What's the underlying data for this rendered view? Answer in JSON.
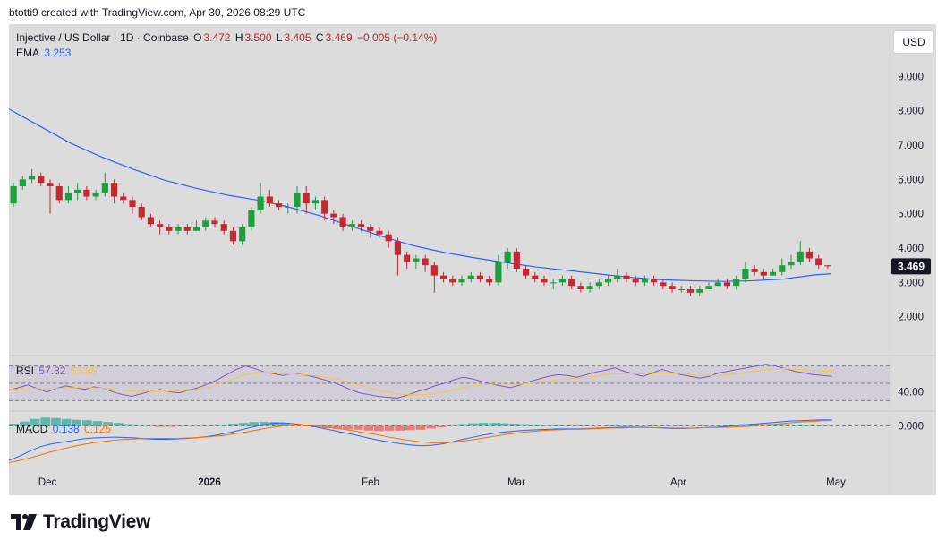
{
  "header": {
    "caption": "btotti9 created with TradingView.com, Apr 30, 2026 08:29 UTC"
  },
  "legend": {
    "symbol": "Injective / US Dollar · 1D · Coinbase",
    "o_label": "O",
    "o": "3.472",
    "h_label": "H",
    "h": "3.500",
    "l_label": "L",
    "l": "3.405",
    "c_label": "C",
    "c": "3.469",
    "change": "−0.005 (−0.14%)",
    "ema_label": "EMA",
    "ema_value": "3.253"
  },
  "currency_button": "USD",
  "rsi_legend": {
    "label": "RSI",
    "value": "57.82",
    "ma_value": "63.89"
  },
  "macd_legend": {
    "label": "MACD",
    "value": "0.138",
    "signal": "0.125"
  },
  "footer": {
    "brand": "TradingView"
  },
  "colors": {
    "up": "#26a69a",
    "down": "#ef5350",
    "ema": "#2962ff",
    "rsi": "#7e57c2",
    "rsi_ma": "#f7c548",
    "macd": "#2962ff",
    "signal": "#ff6d00"
  },
  "chart_data": [
    {
      "type": "candlestick",
      "title": "Injective / US Dollar · 1D · Coinbase",
      "y_axis": {
        "ticks": [
          "2.000",
          "3.000",
          "4.000",
          "5.000",
          "6.000",
          "7.000",
          "8.000",
          "9.000"
        ],
        "range": [
          1.0,
          10.0
        ]
      },
      "x_axis": {
        "ticks": [
          "Dec",
          "2026",
          "Feb",
          "Mar",
          "Apr",
          "May"
        ]
      },
      "last_price_label": "3.469",
      "ema_series": [
        [
          0,
          8.05
        ],
        [
          10,
          7.55
        ],
        [
          20,
          7.05
        ],
        [
          30,
          6.65
        ],
        [
          40,
          6.3
        ],
        [
          50,
          5.98
        ],
        [
          60,
          5.75
        ],
        [
          70,
          5.55
        ],
        [
          80,
          5.4
        ],
        [
          90,
          5.2
        ],
        [
          100,
          4.95
        ],
        [
          110,
          4.65
        ],
        [
          120,
          4.35
        ],
        [
          130,
          4.08
        ],
        [
          140,
          3.88
        ],
        [
          150,
          3.72
        ],
        [
          160,
          3.58
        ],
        [
          170,
          3.45
        ],
        [
          180,
          3.35
        ],
        [
          190,
          3.25
        ],
        [
          200,
          3.15
        ],
        [
          210,
          3.08
        ],
        [
          220,
          3.05
        ],
        [
          230,
          3.03
        ],
        [
          240,
          3.05
        ],
        [
          250,
          3.1
        ],
        [
          260,
          3.22
        ],
        [
          265,
          3.25
        ]
      ],
      "candles": [
        [
          5.3,
          5.8,
          5.9,
          5.2
        ],
        [
          5.8,
          6.0,
          6.1,
          5.7
        ],
        [
          6.0,
          6.1,
          6.3,
          5.9
        ],
        [
          6.1,
          5.9,
          6.2,
          5.8
        ],
        [
          5.9,
          5.8,
          6.0,
          5.0
        ],
        [
          5.8,
          5.4,
          5.9,
          5.3
        ],
        [
          5.4,
          5.6,
          5.8,
          5.3
        ],
        [
          5.6,
          5.7,
          5.9,
          5.4
        ],
        [
          5.7,
          5.5,
          5.8,
          5.4
        ],
        [
          5.5,
          5.6,
          5.7,
          5.4
        ],
        [
          5.6,
          5.9,
          6.2,
          5.5
        ],
        [
          5.9,
          5.5,
          6.0,
          5.3
        ],
        [
          5.5,
          5.4,
          5.6,
          5.3
        ],
        [
          5.4,
          5.2,
          5.5,
          5.0
        ],
        [
          5.2,
          4.9,
          5.3,
          4.8
        ],
        [
          4.9,
          4.7,
          5.0,
          4.6
        ],
        [
          4.7,
          4.6,
          4.8,
          4.4
        ],
        [
          4.6,
          4.5,
          4.7,
          4.4
        ],
        [
          4.5,
          4.6,
          4.7,
          4.4
        ],
        [
          4.6,
          4.5,
          4.7,
          4.4
        ],
        [
          4.5,
          4.6,
          4.8,
          4.5
        ],
        [
          4.6,
          4.8,
          4.9,
          4.5
        ],
        [
          4.8,
          4.7,
          4.9,
          4.6
        ],
        [
          4.7,
          4.5,
          4.8,
          4.4
        ],
        [
          4.5,
          4.2,
          4.6,
          4.1
        ],
        [
          4.2,
          4.6,
          4.7,
          4.1
        ],
        [
          4.6,
          5.1,
          5.2,
          4.5
        ],
        [
          5.1,
          5.5,
          5.9,
          5.0
        ],
        [
          5.5,
          5.3,
          5.7,
          5.2
        ],
        [
          5.3,
          5.2,
          5.4,
          5.1
        ],
        [
          5.2,
          5.2,
          5.3,
          5.0
        ],
        [
          5.2,
          5.6,
          5.8,
          5.0
        ],
        [
          5.6,
          5.3,
          5.8,
          5.0
        ],
        [
          5.3,
          5.4,
          5.5,
          5.1
        ],
        [
          5.4,
          5.0,
          5.5,
          4.8
        ],
        [
          5.0,
          4.9,
          5.1,
          4.7
        ],
        [
          4.9,
          4.6,
          5.0,
          4.5
        ],
        [
          4.6,
          4.7,
          4.8,
          4.5
        ],
        [
          4.7,
          4.6,
          4.8,
          4.5
        ],
        [
          4.6,
          4.5,
          4.7,
          4.3
        ],
        [
          4.5,
          4.4,
          4.6,
          4.3
        ],
        [
          4.4,
          4.2,
          4.5,
          4.0
        ],
        [
          4.2,
          3.8,
          4.3,
          3.2
        ],
        [
          3.8,
          3.6,
          3.9,
          3.4
        ],
        [
          3.6,
          3.7,
          3.8,
          3.4
        ],
        [
          3.7,
          3.5,
          3.8,
          3.3
        ],
        [
          3.5,
          3.2,
          3.6,
          2.7
        ],
        [
          3.2,
          3.1,
          3.3,
          3.0
        ],
        [
          3.1,
          3.0,
          3.2,
          2.9
        ],
        [
          3.0,
          3.1,
          3.2,
          2.9
        ],
        [
          3.1,
          3.2,
          3.3,
          3.0
        ],
        [
          3.2,
          3.1,
          3.3,
          3.0
        ],
        [
          3.1,
          3.0,
          3.2,
          2.9
        ],
        [
          3.0,
          3.6,
          3.8,
          2.9
        ],
        [
          3.6,
          3.9,
          4.0,
          3.4
        ],
        [
          3.9,
          3.4,
          4.0,
          3.3
        ],
        [
          3.4,
          3.2,
          3.5,
          3.1
        ],
        [
          3.2,
          3.1,
          3.3,
          3.0
        ],
        [
          3.1,
          3.0,
          3.2,
          2.9
        ],
        [
          3.0,
          3.0,
          3.1,
          2.8
        ],
        [
          3.0,
          3.1,
          3.2,
          2.9
        ],
        [
          3.1,
          2.9,
          3.2,
          2.8
        ],
        [
          2.9,
          2.8,
          3.0,
          2.7
        ],
        [
          2.8,
          2.9,
          3.0,
          2.7
        ],
        [
          2.9,
          3.0,
          3.1,
          2.8
        ],
        [
          3.0,
          3.1,
          3.2,
          2.9
        ],
        [
          3.1,
          3.2,
          3.4,
          3.0
        ],
        [
          3.2,
          3.1,
          3.3,
          3.0
        ],
        [
          3.1,
          3.0,
          3.2,
          2.9
        ],
        [
          3.0,
          3.1,
          3.2,
          2.9
        ],
        [
          3.1,
          3.0,
          3.2,
          2.9
        ],
        [
          3.0,
          2.9,
          3.1,
          2.8
        ],
        [
          2.9,
          2.8,
          3.0,
          2.7
        ],
        [
          2.8,
          2.8,
          2.9,
          2.7
        ],
        [
          2.8,
          2.7,
          2.9,
          2.6
        ],
        [
          2.7,
          2.8,
          2.9,
          2.6
        ],
        [
          2.8,
          2.9,
          3.0,
          2.8
        ],
        [
          2.9,
          3.0,
          3.1,
          2.9
        ],
        [
          3.0,
          2.9,
          3.1,
          2.8
        ],
        [
          2.9,
          3.1,
          3.2,
          2.8
        ],
        [
          3.1,
          3.4,
          3.6,
          3.0
        ],
        [
          3.4,
          3.3,
          3.5,
          3.2
        ],
        [
          3.3,
          3.2,
          3.4,
          3.1
        ],
        [
          3.2,
          3.3,
          3.4,
          3.2
        ],
        [
          3.3,
          3.5,
          3.7,
          3.2
        ],
        [
          3.5,
          3.6,
          3.8,
          3.4
        ],
        [
          3.6,
          3.9,
          4.2,
          3.5
        ],
        [
          3.9,
          3.7,
          4.0,
          3.6
        ],
        [
          3.7,
          3.5,
          3.8,
          3.4
        ],
        [
          3.5,
          3.47,
          3.5,
          3.4
        ]
      ]
    },
    {
      "type": "line",
      "title": "RSI",
      "y_axis": {
        "ticks": [
          "40.00"
        ],
        "levels": [
          70,
          50,
          30
        ],
        "range": [
          20,
          80
        ]
      },
      "series": [
        {
          "name": "RSI",
          "values": [
            42,
            45,
            48,
            44,
            40,
            44,
            47,
            45,
            43,
            46,
            44,
            40,
            37,
            35,
            38,
            41,
            43,
            40,
            39,
            42,
            45,
            49,
            54,
            60,
            66,
            70,
            67,
            63,
            61,
            59,
            62,
            60,
            58,
            55,
            52,
            48,
            43,
            39,
            37,
            35,
            34,
            33,
            36,
            40,
            43,
            47,
            50,
            54,
            57,
            55,
            52,
            49,
            47,
            45,
            48,
            52,
            55,
            58,
            60,
            59,
            57,
            60,
            63,
            65,
            68,
            64,
            61,
            58,
            62,
            66,
            63,
            60,
            58,
            56,
            58,
            62,
            64,
            66,
            68,
            70,
            72,
            70,
            67,
            64,
            62,
            60,
            59,
            58
          ]
        },
        {
          "name": "RSI-based MA",
          "values": [
            43,
            43,
            44,
            44,
            44,
            44,
            45,
            45,
            45,
            45,
            44,
            43,
            42,
            41,
            41,
            41,
            41,
            41,
            41,
            42,
            43,
            45,
            48,
            52,
            56,
            60,
            62,
            63,
            62,
            61,
            61,
            60,
            59,
            58,
            56,
            54,
            51,
            48,
            45,
            42,
            40,
            38,
            37,
            37,
            37,
            38,
            40,
            42,
            45,
            47,
            48,
            49,
            49,
            49,
            49,
            50,
            51,
            53,
            54,
            55,
            56,
            57,
            58,
            60,
            61,
            61,
            61,
            61,
            62,
            62,
            62,
            61,
            60,
            59,
            59,
            59,
            60,
            61,
            63,
            64,
            66,
            67,
            67,
            66,
            66,
            65,
            64,
            64
          ]
        }
      ]
    },
    {
      "type": "line",
      "title": "MACD",
      "y_axis": {
        "ticks": [
          "0.000"
        ],
        "range": [
          -0.9,
          0.3
        ]
      },
      "series": [
        {
          "name": "MACD",
          "values": [
            -0.8,
            -0.7,
            -0.58,
            -0.48,
            -0.42,
            -0.38,
            -0.34,
            -0.3,
            -0.28,
            -0.27,
            -0.26,
            -0.27,
            -0.28,
            -0.3,
            -0.31,
            -0.31,
            -0.3,
            -0.29,
            -0.27,
            -0.24,
            -0.2,
            -0.15,
            -0.09,
            -0.03,
            0.02,
            0.06,
            0.07,
            0.05,
            0.02,
            -0.02,
            -0.07,
            -0.12,
            -0.17,
            -0.22,
            -0.28,
            -0.33,
            -0.37,
            -0.41,
            -0.44,
            -0.46,
            -0.45,
            -0.42,
            -0.37,
            -0.31,
            -0.26,
            -0.21,
            -0.17,
            -0.14,
            -0.12,
            -0.1,
            -0.09,
            -0.08,
            -0.07,
            -0.07,
            -0.07,
            -0.06,
            -0.05,
            -0.04,
            -0.03,
            -0.03,
            -0.03,
            -0.04,
            -0.05,
            -0.06,
            -0.06,
            -0.05,
            -0.04,
            -0.03,
            -0.01,
            0.01,
            0.03,
            0.05,
            0.07,
            0.09,
            0.11,
            0.12,
            0.13,
            0.14,
            0.138
          ]
        },
        {
          "name": "Signal",
          "values": [
            -0.85,
            -0.8,
            -0.74,
            -0.67,
            -0.6,
            -0.54,
            -0.48,
            -0.43,
            -0.39,
            -0.36,
            -0.33,
            -0.31,
            -0.3,
            -0.29,
            -0.29,
            -0.29,
            -0.29,
            -0.28,
            -0.27,
            -0.25,
            -0.23,
            -0.2,
            -0.16,
            -0.12,
            -0.07,
            -0.03,
            0.0,
            0.02,
            0.02,
            0.01,
            -0.02,
            -0.05,
            -0.09,
            -0.13,
            -0.17,
            -0.21,
            -0.26,
            -0.3,
            -0.34,
            -0.37,
            -0.39,
            -0.39,
            -0.38,
            -0.35,
            -0.32,
            -0.28,
            -0.24,
            -0.2,
            -0.17,
            -0.14,
            -0.12,
            -0.1,
            -0.09,
            -0.08,
            -0.08,
            -0.07,
            -0.06,
            -0.05,
            -0.05,
            -0.04,
            -0.04,
            -0.04,
            -0.04,
            -0.05,
            -0.05,
            -0.05,
            -0.04,
            -0.04,
            -0.03,
            -0.02,
            -0.01,
            0.01,
            0.03,
            0.05,
            0.07,
            0.09,
            0.1,
            0.12,
            0.125
          ]
        },
        {
          "name": "Histogram",
          "values": [
            0.05,
            0.1,
            0.16,
            0.19,
            0.18,
            0.16,
            0.14,
            0.13,
            0.11,
            0.09,
            0.07,
            0.04,
            0.02,
            -0.01,
            -0.02,
            -0.02,
            -0.01,
            -0.01,
            0.0,
            0.01,
            0.03,
            0.05,
            0.07,
            0.09,
            0.09,
            0.09,
            0.07,
            0.03,
            0.0,
            -0.03,
            -0.05,
            -0.07,
            -0.08,
            -0.09,
            -0.11,
            -0.12,
            -0.11,
            -0.11,
            -0.1,
            -0.09,
            -0.06,
            -0.03,
            0.01,
            0.04,
            0.06,
            0.07,
            0.07,
            0.06,
            0.05,
            0.04,
            0.03,
            0.02,
            0.02,
            0.01,
            0.01,
            0.01,
            0.01,
            0.01,
            0.02,
            0.01,
            0.01,
            0.0,
            -0.01,
            -0.01,
            -0.01,
            0.0,
            0.0,
            0.01,
            0.02,
            0.03,
            0.04,
            0.04,
            0.04,
            0.04,
            0.04,
            0.03,
            0.03,
            0.02,
            0.013
          ]
        }
      ]
    }
  ]
}
